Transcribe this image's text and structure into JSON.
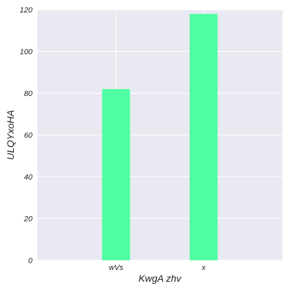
{
  "chart_data": {
    "type": "bar",
    "categories": [
      "wVs",
      "x"
    ],
    "values": [
      82,
      118
    ],
    "xlabel": "KwgA  zhv",
    "ylabel": "ULQYxoHA",
    "ylim": [
      0,
      120
    ],
    "yticks": [
      0,
      20,
      40,
      60,
      80,
      100,
      120
    ],
    "grid": true,
    "colors": {
      "bar": "#50ffa3",
      "plot_background": "#e9e9f1",
      "grid": "#ffffff"
    }
  }
}
